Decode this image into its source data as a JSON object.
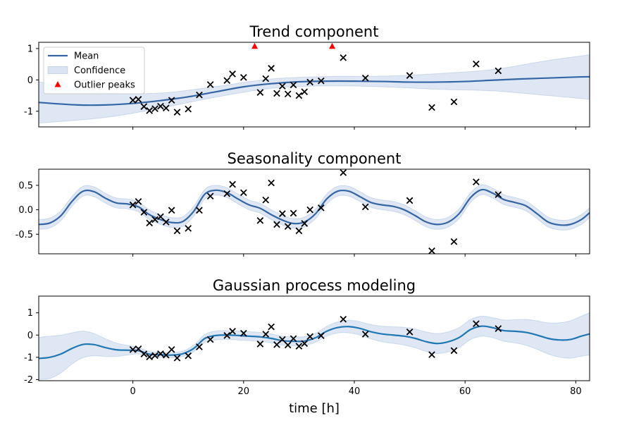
{
  "chart_data": [
    {
      "type": "line",
      "title": "Trend component",
      "xlim": [
        -17,
        82.5
      ],
      "ylim": [
        -1.5,
        1.2
      ],
      "yticks": [
        1,
        0,
        -1
      ],
      "grid": false,
      "legend": {
        "placement": "top-left",
        "entries": [
          {
            "label": "Mean",
            "kind": "line"
          },
          {
            "label": "Confidence",
            "kind": "band"
          },
          {
            "label": "Outlier peaks",
            "kind": "triangle"
          }
        ]
      },
      "colors": {
        "mean": "#3465a4",
        "band": "#aec3e5",
        "outlier": "#ff0000",
        "observations": "#000000"
      },
      "mean": {
        "x": [
          -17,
          -10,
          -5,
          0,
          5,
          10,
          15,
          20,
          25,
          30,
          35,
          40,
          45,
          50,
          55,
          60,
          65,
          70,
          75,
          80,
          82.5
        ],
        "y": [
          -0.72,
          -0.8,
          -0.8,
          -0.75,
          -0.66,
          -0.54,
          -0.38,
          -0.22,
          -0.12,
          -0.06,
          -0.04,
          -0.04,
          -0.05,
          -0.07,
          -0.07,
          -0.05,
          -0.01,
          0.03,
          0.06,
          0.09,
          0.1
        ]
      },
      "band": {
        "x": [
          -17,
          -5,
          5,
          15,
          25,
          35,
          45,
          55,
          65,
          75,
          82.5
        ],
        "lower": [
          -1.38,
          -1.2,
          -0.9,
          -0.55,
          -0.27,
          -0.19,
          -0.22,
          -0.3,
          -0.35,
          -0.5,
          -0.62
        ],
        "upper": [
          -0.06,
          -0.4,
          -0.42,
          -0.21,
          0.03,
          0.11,
          0.12,
          0.2,
          0.33,
          0.62,
          0.8
        ]
      },
      "observations": {
        "x": [
          0,
          1,
          2,
          3,
          4,
          5,
          6,
          7,
          8,
          10,
          12,
          14,
          17,
          18,
          20,
          23,
          24,
          25,
          26,
          27,
          28,
          29,
          30,
          31,
          32,
          34,
          38,
          42,
          50,
          54,
          58,
          62,
          66
        ],
        "y": [
          -0.65,
          -0.62,
          -0.85,
          -0.98,
          -0.92,
          -0.84,
          -0.9,
          -0.65,
          -1.03,
          -0.93,
          -0.48,
          -0.15,
          -0.02,
          0.19,
          0.08,
          -0.4,
          0.04,
          0.37,
          -0.43,
          -0.2,
          -0.45,
          -0.16,
          -0.5,
          -0.38,
          -0.07,
          -0.03,
          0.71,
          0.06,
          0.14,
          -0.88,
          -0.7,
          0.51,
          0.29
        ]
      },
      "outliers": {
        "x": [
          22,
          36
        ],
        "y": [
          1.07,
          1.07
        ]
      }
    },
    {
      "type": "line",
      "title": "Seasonality component",
      "xlim": [
        -17,
        82.5
      ],
      "ylim": [
        -0.9,
        0.83
      ],
      "yticks": [
        0.5,
        0.0,
        -0.5
      ],
      "grid": false,
      "colors": {
        "mean": "#3465a4",
        "band": "#aec3e5",
        "observations": "#000000"
      },
      "mean": {
        "x": [
          -17,
          -15,
          -13,
          -11,
          -9,
          -7,
          -5,
          -3,
          -1,
          1,
          3,
          5,
          7,
          9,
          11,
          13,
          15,
          17,
          19,
          21,
          23,
          25,
          27,
          29,
          31,
          33,
          35,
          37,
          39,
          41,
          43,
          45,
          47,
          49,
          51,
          53,
          55,
          57,
          59,
          61,
          63,
          65,
          67,
          69,
          71,
          73,
          75,
          77,
          79,
          81,
          82.5
        ],
        "y": [
          -0.3,
          -0.27,
          -0.12,
          0.17,
          0.38,
          0.37,
          0.24,
          0.14,
          0.12,
          0.06,
          -0.1,
          -0.2,
          -0.26,
          -0.24,
          -0.03,
          0.32,
          0.4,
          0.35,
          0.22,
          0.1,
          0.03,
          -0.1,
          -0.21,
          -0.28,
          -0.25,
          -0.08,
          0.22,
          0.38,
          0.38,
          0.27,
          0.15,
          0.1,
          0.07,
          0.0,
          -0.12,
          -0.25,
          -0.3,
          -0.25,
          -0.07,
          0.25,
          0.41,
          0.34,
          0.21,
          0.15,
          0.08,
          -0.08,
          -0.25,
          -0.31,
          -0.3,
          -0.2,
          -0.06
        ]
      },
      "band_halfwidth": 0.1,
      "observations": {
        "x": [
          0,
          1,
          2,
          3,
          4,
          5,
          6,
          7,
          8,
          10,
          12,
          14,
          17,
          18,
          20,
          23,
          24,
          25,
          26,
          27,
          28,
          29,
          30,
          31,
          32,
          34,
          38,
          42,
          50,
          54,
          58,
          62,
          66
        ],
        "y": [
          0.1,
          0.17,
          -0.05,
          -0.27,
          -0.2,
          -0.14,
          -0.25,
          -0.01,
          -0.43,
          -0.38,
          -0.01,
          0.28,
          0.33,
          0.52,
          0.35,
          -0.22,
          0.2,
          0.55,
          -0.3,
          -0.08,
          -0.34,
          -0.07,
          -0.43,
          -0.28,
          0.0,
          0.04,
          0.76,
          0.06,
          0.19,
          -0.84,
          -0.65,
          0.57,
          0.31
        ]
      }
    },
    {
      "type": "line",
      "title": "Gaussian process modeling",
      "xlabel": "time [h]",
      "xlim": [
        -17,
        82.5
      ],
      "ylim": [
        -2.05,
        1.75
      ],
      "yticks": [
        1,
        0,
        -1,
        -2
      ],
      "xticks": [
        0,
        20,
        40,
        60,
        80
      ],
      "grid": false,
      "colors": {
        "mean": "#1f77b4",
        "band": "#aec3e5",
        "observations": "#000000"
      },
      "mean": {
        "x": [
          -17,
          -15,
          -13,
          -11,
          -9,
          -7,
          -5,
          -3,
          -1,
          1,
          3,
          5,
          7,
          9,
          11,
          13,
          15,
          17,
          19,
          21,
          23,
          25,
          27,
          29,
          31,
          33,
          35,
          37,
          39,
          41,
          43,
          45,
          47,
          49,
          51,
          53,
          55,
          57,
          59,
          61,
          63,
          65,
          67,
          69,
          71,
          73,
          75,
          77,
          79,
          81,
          82.5
        ],
        "y": [
          -1.05,
          -1.0,
          -0.85,
          -0.6,
          -0.42,
          -0.43,
          -0.56,
          -0.66,
          -0.68,
          -0.7,
          -0.86,
          -0.88,
          -0.9,
          -0.84,
          -0.6,
          -0.15,
          -0.02,
          0.0,
          -0.02,
          -0.05,
          -0.08,
          -0.15,
          -0.25,
          -0.28,
          -0.27,
          -0.12,
          0.17,
          0.34,
          0.38,
          0.3,
          0.15,
          0.05,
          0.0,
          -0.05,
          -0.15,
          -0.3,
          -0.38,
          -0.3,
          -0.1,
          0.25,
          0.4,
          0.33,
          0.2,
          0.17,
          0.12,
          0.0,
          -0.15,
          -0.22,
          -0.2,
          -0.05,
          0.05
        ]
      },
      "band_halfwidth": [
        0.95,
        0.95,
        0.85,
        0.7,
        0.6,
        0.5,
        0.4,
        0.3,
        0.22,
        0.15,
        0.12,
        0.12,
        0.12,
        0.12,
        0.15,
        0.18,
        0.2,
        0.2,
        0.2,
        0.2,
        0.2,
        0.2,
        0.2,
        0.2,
        0.2,
        0.2,
        0.22,
        0.25,
        0.28,
        0.3,
        0.32,
        0.35,
        0.37,
        0.4,
        0.42,
        0.44,
        0.45,
        0.45,
        0.45,
        0.45,
        0.45,
        0.45,
        0.48,
        0.52,
        0.58,
        0.64,
        0.7,
        0.77,
        0.84,
        0.9,
        0.95
      ],
      "observations": {
        "x": [
          0,
          1,
          2,
          3,
          4,
          5,
          6,
          7,
          8,
          10,
          12,
          14,
          17,
          18,
          20,
          23,
          24,
          25,
          26,
          27,
          28,
          29,
          30,
          31,
          32,
          34,
          38,
          42,
          50,
          54,
          58,
          62,
          66
        ],
        "y": [
          -0.65,
          -0.62,
          -0.85,
          -0.98,
          -0.92,
          -0.84,
          -0.9,
          -0.65,
          -1.03,
          -0.93,
          -0.53,
          -0.2,
          -0.02,
          0.17,
          0.08,
          -0.4,
          0.04,
          0.37,
          -0.43,
          -0.2,
          -0.45,
          -0.16,
          -0.5,
          -0.38,
          -0.07,
          -0.03,
          0.71,
          0.04,
          0.14,
          -0.88,
          -0.7,
          0.51,
          0.29
        ]
      }
    }
  ]
}
